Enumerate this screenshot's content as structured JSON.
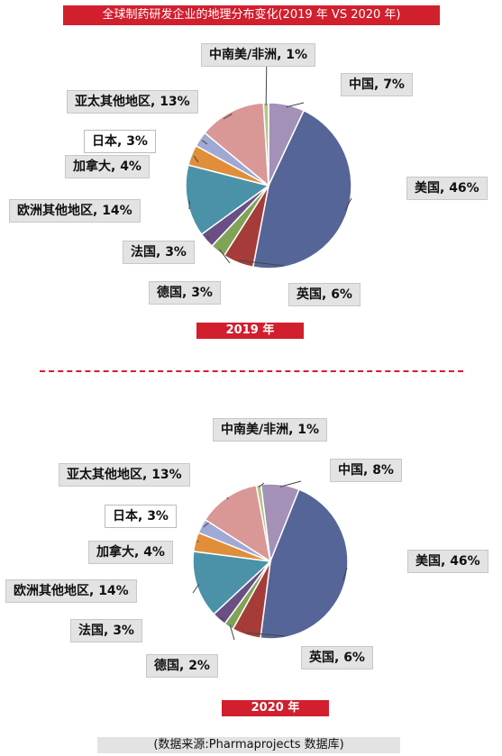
{
  "title": "全球制药研发企业的地理分布变化(2019 年 VS 2020 年)",
  "source": "(数据来源:Pharmaprojects 数据库)",
  "colors": {
    "中国": "#a391b7",
    "美国": "#566597",
    "英国": "#a53c3a",
    "德国": "#7fa457",
    "法国": "#6a4f85",
    "欧洲其他地区": "#4b92a8",
    "加拿大": "#e08e3a",
    "日本": "#9fa9d3",
    "亚太其他地区": "#d99796",
    "中南美/非洲": "#b5c689"
  },
  "chart_data": [
    {
      "type": "pie",
      "year_label": "2019 年",
      "slices": [
        {
          "name": "中国",
          "value": 7,
          "label": "中国, 7%"
        },
        {
          "name": "美国",
          "value": 46,
          "label": "美国, 46%"
        },
        {
          "name": "英国",
          "value": 6,
          "label": "英国, 6%"
        },
        {
          "name": "德国",
          "value": 3,
          "label": "德国, 3%"
        },
        {
          "name": "法国",
          "value": 3,
          "label": "法国, 3%"
        },
        {
          "name": "欧洲其他地区",
          "value": 14,
          "label": "欧洲其他地区, 14%"
        },
        {
          "name": "加拿大",
          "value": 4,
          "label": "加拿大, 4%"
        },
        {
          "name": "日本",
          "value": 3,
          "label": "日本, 3%"
        },
        {
          "name": "亚太其他地区",
          "value": 13,
          "label": "亚太其他地区, 13%"
        },
        {
          "name": "中南美/非洲",
          "value": 1,
          "label": "中南美/非洲, 1%"
        }
      ]
    },
    {
      "type": "pie",
      "year_label": "2020 年",
      "slices": [
        {
          "name": "中国",
          "value": 8,
          "label": "中国, 8%"
        },
        {
          "name": "美国",
          "value": 46,
          "label": "美国, 46%"
        },
        {
          "name": "英国",
          "value": 6,
          "label": "英国, 6%"
        },
        {
          "name": "德国",
          "value": 2,
          "label": "德国, 2%"
        },
        {
          "name": "法国",
          "value": 3,
          "label": "法国, 3%"
        },
        {
          "name": "欧洲其他地区",
          "value": 14,
          "label": "欧洲其他地区, 14%"
        },
        {
          "name": "加拿大",
          "value": 4,
          "label": "加拿大, 4%"
        },
        {
          "name": "日本",
          "value": 3,
          "label": "日本, 3%"
        },
        {
          "name": "亚太其他地区",
          "value": 13,
          "label": "亚太其他地区, 13%"
        },
        {
          "name": "中南美/非洲",
          "value": 1,
          "label": "中南美/非洲, 1%"
        }
      ]
    }
  ]
}
